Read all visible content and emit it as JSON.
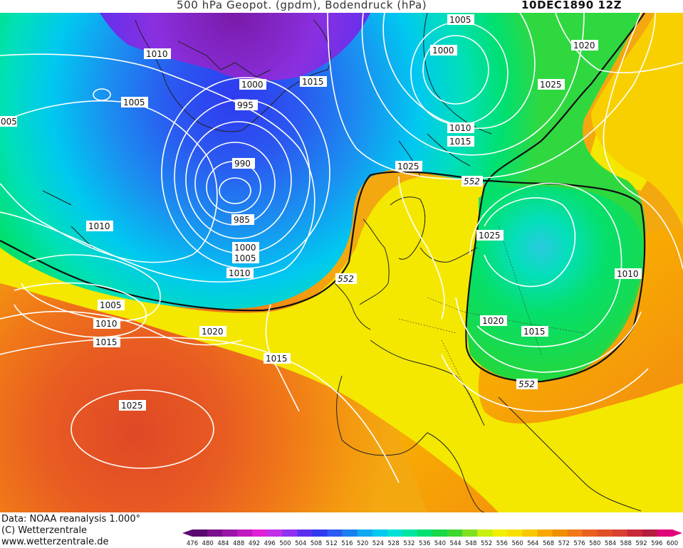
{
  "header": {
    "title": "500 hPa Geopot. (gpdm), Bodendruck (hPa)",
    "datetime": "10DEC1890 12Z"
  },
  "footer": {
    "credit_line1": "Data: NOAA reanalysis 1.000°",
    "credit_line2": "(C) Wetterzentrale",
    "credit_line3": "www.wetterzentrale.de"
  },
  "colorbar": {
    "ticks": [
      "476",
      "480",
      "484",
      "488",
      "492",
      "496",
      "500",
      "504",
      "508",
      "512",
      "516",
      "520",
      "524",
      "528",
      "532",
      "536",
      "540",
      "544",
      "548",
      "552",
      "556",
      "560",
      "564",
      "568",
      "572",
      "576",
      "580",
      "584",
      "588",
      "592",
      "596",
      "600"
    ],
    "colors": [
      "#5a0a6e",
      "#7a0f8c",
      "#9a14a8",
      "#c018c0",
      "#e020d8",
      "#c030e8",
      "#9030f0",
      "#5a30f0",
      "#2f3af0",
      "#2a5af0",
      "#1a80f0",
      "#10a8f0",
      "#00c8f0",
      "#00e0d8",
      "#00e6a0",
      "#00e070",
      "#18d848",
      "#3cd830",
      "#80e020",
      "#c8f010",
      "#f0f000",
      "#f8e000",
      "#f8c800",
      "#f8a800",
      "#f09000",
      "#f07818",
      "#e86020",
      "#e05028",
      "#d84030",
      "#c82838",
      "#b41e40",
      "#e0007a"
    ]
  },
  "map": {
    "isobar_labels": [
      "1005",
      "1000",
      "1010",
      "1015",
      "1020",
      "1005",
      "1025",
      "1000",
      "995",
      "990",
      "985",
      "1000",
      "1005",
      "1010",
      "1010",
      "1010",
      "1015",
      "1025",
      "1025",
      "1010",
      "1005",
      "1010",
      "1015",
      "1020",
      "1015",
      "1020",
      "1015",
      "1010",
      "1025",
      "005"
    ],
    "geopot_labels": [
      "552",
      "552",
      "552"
    ]
  }
}
